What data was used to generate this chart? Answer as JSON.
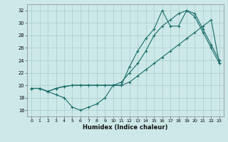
{
  "xlabel": "Humidex (Indice chaleur)",
  "xlim": [
    -0.5,
    23.5
  ],
  "ylim": [
    15.0,
    33.0
  ],
  "yticks": [
    16,
    18,
    20,
    22,
    24,
    26,
    28,
    30,
    32
  ],
  "xticks": [
    0,
    1,
    2,
    3,
    4,
    5,
    6,
    7,
    8,
    9,
    10,
    11,
    12,
    13,
    14,
    15,
    16,
    17,
    18,
    19,
    20,
    21,
    22,
    23
  ],
  "bg_color": "#cde8e8",
  "grid_color": "#aacccc",
  "line_color": "#1a6e6a",
  "line1_x": [
    0,
    1,
    2,
    3,
    4,
    5,
    6,
    7,
    8,
    9,
    10,
    11,
    12,
    13,
    14,
    15,
    16,
    17,
    18,
    19,
    20,
    21,
    22,
    23
  ],
  "line1_y": [
    19.5,
    19.5,
    19.0,
    18.5,
    18.0,
    16.5,
    16.0,
    16.5,
    17.0,
    18.0,
    20.0,
    20.0,
    20.5,
    21.5,
    22.5,
    23.5,
    24.5,
    25.5,
    26.5,
    27.5,
    28.5,
    29.5,
    30.5,
    23.5
  ],
  "line2_x": [
    0,
    1,
    2,
    3,
    4,
    5,
    6,
    7,
    8,
    9,
    10,
    11,
    12,
    13,
    14,
    15,
    16,
    17,
    18,
    19,
    20,
    21,
    22,
    23
  ],
  "line2_y": [
    19.5,
    19.5,
    19.0,
    19.5,
    19.8,
    20.0,
    20.0,
    20.0,
    20.0,
    20.0,
    20.0,
    20.5,
    22.0,
    23.5,
    25.5,
    28.0,
    29.5,
    30.5,
    31.5,
    32.0,
    31.0,
    28.5,
    26.0,
    23.5
  ],
  "line3_x": [
    0,
    1,
    2,
    3,
    4,
    5,
    6,
    7,
    8,
    9,
    10,
    11,
    12,
    13,
    14,
    15,
    16,
    17,
    18,
    19,
    20,
    21,
    22,
    23
  ],
  "line3_y": [
    19.5,
    19.5,
    19.0,
    19.5,
    19.8,
    20.0,
    20.0,
    20.0,
    20.0,
    20.0,
    20.0,
    20.0,
    23.0,
    25.5,
    27.5,
    29.0,
    32.0,
    29.5,
    29.5,
    32.0,
    31.5,
    29.0,
    26.5,
    24.0
  ]
}
